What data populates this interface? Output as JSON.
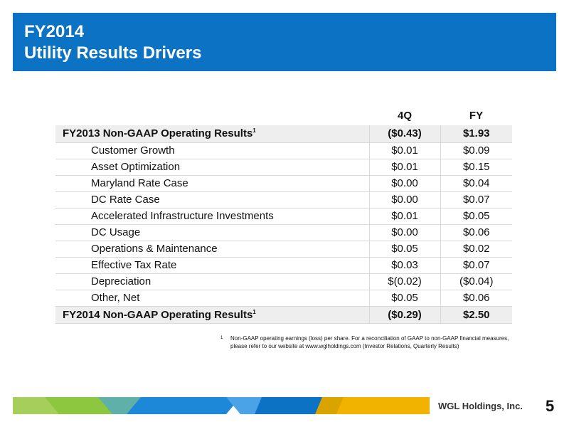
{
  "title": {
    "line1": "FY2014",
    "line2": "Utility Results Drivers"
  },
  "table": {
    "headers": {
      "q4": "4Q",
      "fy": "FY"
    },
    "start": {
      "label": "FY2013 Non-GAAP Operating Results",
      "footnote_mark": "1",
      "q4": "($0.43)",
      "fy": "$1.93"
    },
    "rows": [
      {
        "label": "Customer Growth",
        "q4": "$0.01",
        "fy": "$0.09"
      },
      {
        "label": "Asset Optimization",
        "q4": "$0.01",
        "fy": "$0.15"
      },
      {
        "label": "Maryland Rate Case",
        "q4": "$0.00",
        "fy": "$0.04"
      },
      {
        "label": "DC Rate Case",
        "q4": "$0.00",
        "fy": "$0.07"
      },
      {
        "label": "Accelerated Infrastructure Investments",
        "q4": "$0.01",
        "fy": "$0.05"
      },
      {
        "label": "DC Usage",
        "q4": "$0.00",
        "fy": "$0.06"
      },
      {
        "label": "Operations & Maintenance",
        "q4": "$0.05",
        "fy": "$0.02"
      },
      {
        "label": "Effective Tax Rate",
        "q4": "$0.03",
        "fy": "$0.07"
      },
      {
        "label": "Depreciation",
        "q4": "$(0.02)",
        "fy": "($0.04)"
      },
      {
        "label": "Other, Net",
        "q4": "$0.05",
        "fy": "$0.06"
      }
    ],
    "end": {
      "label": "FY2014 Non-GAAP Operating Results",
      "footnote_mark": "1",
      "q4": "($0.29)",
      "fy": "$2.50"
    }
  },
  "footnote": {
    "mark": "1",
    "text": "Non-GAAP operating earnings (loss) per share. For a reconciliation of GAAP to non-GAAP financial measures, please refer to our website at www.wglholdings.com (Investor Relations, Quarterly Results)"
  },
  "footer": {
    "company": "WGL Holdings, Inc.",
    "page_number": "5"
  },
  "colors": {
    "title_bar": "#0b72c4",
    "stripe_green": "#8dc63f",
    "stripe_blue": "#1e88d8",
    "stripe_yellow": "#f2b300"
  }
}
